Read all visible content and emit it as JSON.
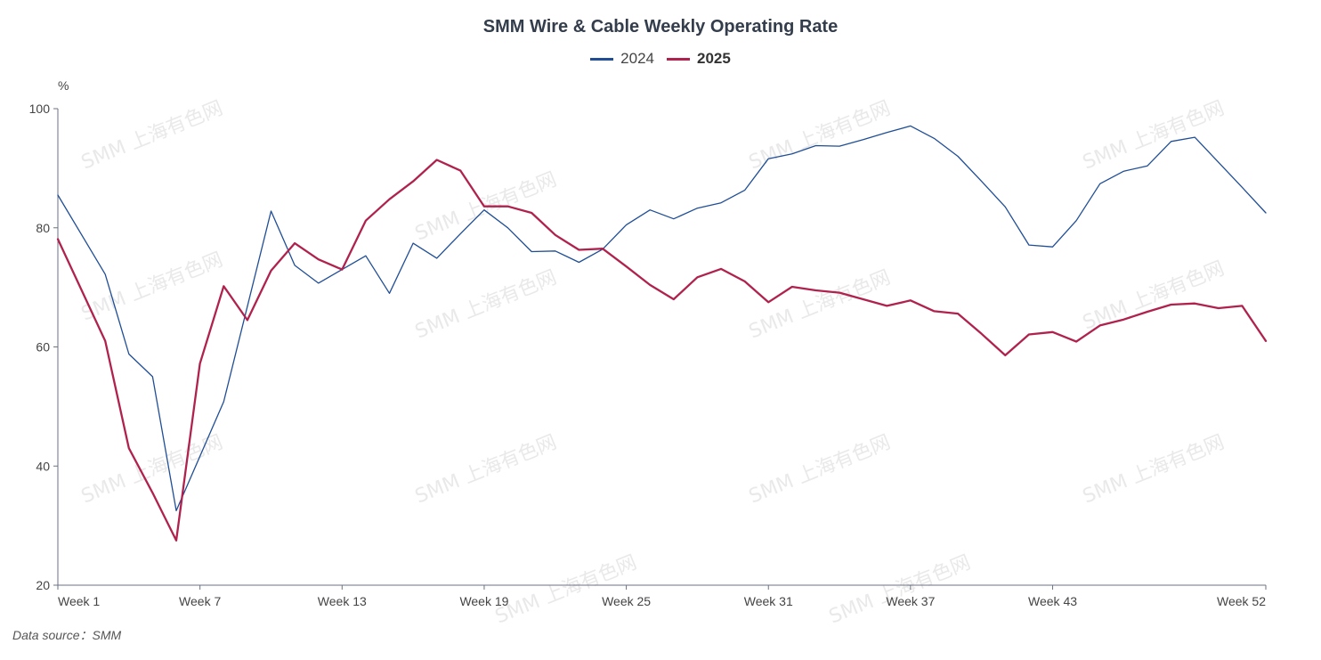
{
  "watermark_text": "SMM 上海有色网",
  "chart_data": {
    "type": "line",
    "title": "SMM Wire & Cable Weekly Operating Rate",
    "ylabel": "%",
    "xlabel": "",
    "ylim": [
      20,
      100
    ],
    "yticks": [
      20,
      40,
      60,
      80,
      100
    ],
    "xlim": [
      1,
      52
    ],
    "xtick_labels": [
      {
        "week": 1,
        "label": "Week 1"
      },
      {
        "week": 7,
        "label": "Week 7"
      },
      {
        "week": 13,
        "label": "Week 13"
      },
      {
        "week": 19,
        "label": "Week 19"
      },
      {
        "week": 25,
        "label": "Week 25"
      },
      {
        "week": 31,
        "label": "Week 31"
      },
      {
        "week": 37,
        "label": "Week 37"
      },
      {
        "week": 43,
        "label": "Week 43"
      },
      {
        "week": 52,
        "label": "Week 52"
      }
    ],
    "grid": false,
    "legend_position": "top-center",
    "series": [
      {
        "name": "2024",
        "color": "#1f4e96",
        "width": 1.3,
        "x": [
          1,
          3,
          4,
          5,
          6,
          8,
          10,
          11,
          12,
          13,
          14,
          15,
          16,
          17,
          18,
          19,
          20,
          21,
          22,
          23,
          24,
          25,
          26,
          27,
          28,
          29,
          30,
          31,
          32,
          33,
          34,
          35,
          36,
          37,
          38,
          39,
          40,
          41,
          42,
          43,
          44,
          45,
          46,
          47,
          48,
          49,
          50,
          51,
          52
        ],
        "values": [
          85.5,
          72.2,
          58.8,
          55.0,
          32.5,
          50.8,
          82.8,
          73.7,
          70.7,
          73.0,
          75.3,
          69.0,
          77.4,
          74.9,
          79.0,
          83.0,
          80.0,
          76.0,
          76.1,
          74.2,
          76.4,
          80.5,
          83.0,
          81.5,
          83.3,
          84.2,
          86.3,
          91.6,
          92.4,
          93.8,
          93.7,
          94.8,
          96.0,
          97.1,
          95.0,
          92.0,
          87.8,
          83.5,
          77.1,
          76.8,
          81.2,
          87.4,
          89.5,
          90.4,
          94.5,
          95.2,
          91.0,
          86.8,
          82.5
        ]
      },
      {
        "name": "2025",
        "color": "#b0224d",
        "width": 2.3,
        "x": [
          1,
          3,
          4,
          5,
          6,
          7,
          8,
          9,
          10,
          11,
          12,
          13,
          14,
          15,
          16,
          17,
          18,
          19,
          20,
          21,
          22,
          23,
          24,
          25,
          26,
          27,
          28,
          29,
          30,
          31,
          32,
          33,
          34,
          35,
          36,
          37,
          38,
          39,
          40,
          41,
          42,
          43,
          44,
          45,
          46,
          47,
          48,
          49,
          50,
          51,
          52
        ],
        "values": [
          78.1,
          61.0,
          43.0,
          35.5,
          27.5,
          57.2,
          70.2,
          64.5,
          72.8,
          77.4,
          74.7,
          73.0,
          81.2,
          84.8,
          87.8,
          91.4,
          89.6,
          83.6,
          83.6,
          82.5,
          78.8,
          76.3,
          76.5,
          73.5,
          70.4,
          68.0,
          71.7,
          73.1,
          71.0,
          67.5,
          70.1,
          69.5,
          69.1,
          68.0,
          66.9,
          67.8,
          66.0,
          65.6,
          62.2,
          58.6,
          62.1,
          62.5,
          60.9,
          63.6,
          64.6,
          65.9,
          67.1,
          67.3,
          66.5,
          66.9,
          61.0
        ]
      }
    ]
  },
  "source": {
    "label": "Data source：SMM"
  }
}
